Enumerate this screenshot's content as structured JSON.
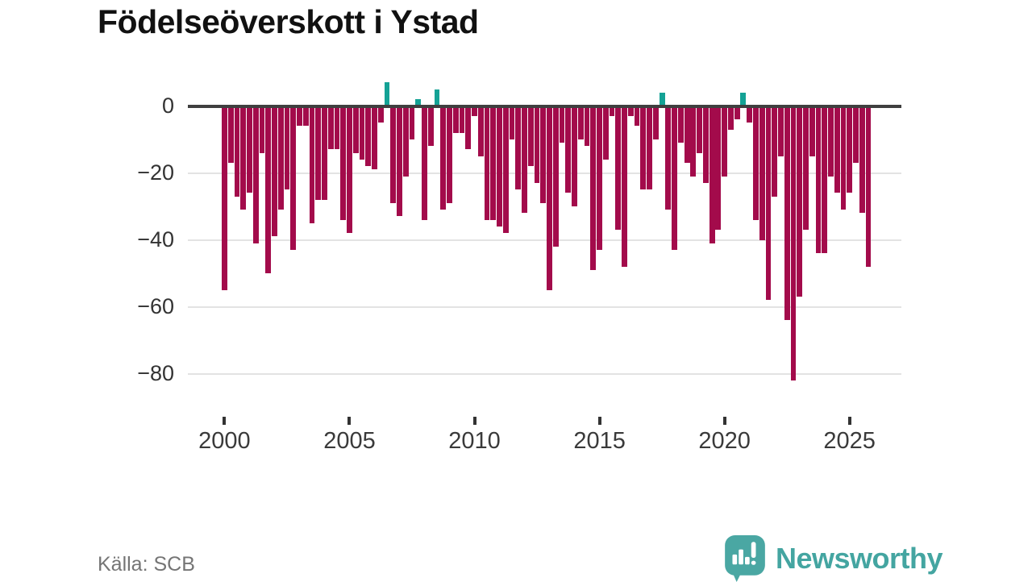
{
  "title": "Födelseöverskott i Ystad",
  "source": "Källa: SCB",
  "brand": {
    "name": "Newsworthy",
    "icon": "newsworthy-speech-bubble-barchart-icon"
  },
  "chart_data": {
    "type": "bar",
    "title": "Födelseöverskott i Ystad",
    "x_unit": "quarter",
    "x": [
      "2000-Q1",
      "2000-Q2",
      "2000-Q3",
      "2000-Q4",
      "2001-Q1",
      "2001-Q2",
      "2001-Q3",
      "2001-Q4",
      "2002-Q1",
      "2002-Q2",
      "2002-Q3",
      "2002-Q4",
      "2003-Q1",
      "2003-Q2",
      "2003-Q3",
      "2003-Q4",
      "2004-Q1",
      "2004-Q2",
      "2004-Q3",
      "2004-Q4",
      "2005-Q1",
      "2005-Q2",
      "2005-Q3",
      "2005-Q4",
      "2006-Q1",
      "2006-Q2",
      "2006-Q3",
      "2006-Q4",
      "2007-Q1",
      "2007-Q2",
      "2007-Q3",
      "2007-Q4",
      "2008-Q1",
      "2008-Q2",
      "2008-Q3",
      "2008-Q4",
      "2009-Q1",
      "2009-Q2",
      "2009-Q3",
      "2009-Q4",
      "2010-Q1",
      "2010-Q2",
      "2010-Q3",
      "2010-Q4",
      "2011-Q1",
      "2011-Q2",
      "2011-Q3",
      "2011-Q4",
      "2012-Q1",
      "2012-Q2",
      "2012-Q3",
      "2012-Q4",
      "2013-Q1",
      "2013-Q2",
      "2013-Q3",
      "2013-Q4",
      "2014-Q1",
      "2014-Q2",
      "2014-Q3",
      "2014-Q4",
      "2015-Q1",
      "2015-Q2",
      "2015-Q3",
      "2015-Q4",
      "2016-Q1",
      "2016-Q2",
      "2016-Q3",
      "2016-Q4",
      "2017-Q1",
      "2017-Q2",
      "2017-Q3",
      "2017-Q4",
      "2018-Q1",
      "2018-Q2",
      "2018-Q3",
      "2018-Q4",
      "2019-Q1",
      "2019-Q2",
      "2019-Q3",
      "2019-Q4",
      "2020-Q1",
      "2020-Q2",
      "2020-Q3",
      "2020-Q4",
      "2021-Q1",
      "2021-Q2",
      "2021-Q3",
      "2021-Q4",
      "2022-Q1",
      "2022-Q2",
      "2022-Q3",
      "2022-Q4",
      "2023-Q1",
      "2023-Q2",
      "2023-Q3",
      "2023-Q4",
      "2024-Q1",
      "2024-Q2",
      "2024-Q3",
      "2024-Q4",
      "2025-Q1",
      "2025-Q2",
      "2025-Q3",
      "2025-Q4"
    ],
    "values": [
      -55,
      -17,
      -27,
      -31,
      -26,
      -41,
      -14,
      -50,
      -39,
      -31,
      -25,
      -43,
      -6,
      -6,
      -35,
      -28,
      -28,
      -13,
      -13,
      -34,
      -38,
      -14,
      -16,
      -18,
      -19,
      -5,
      7,
      -29,
      -33,
      -21,
      -10,
      2,
      -34,
      -12,
      5,
      -31,
      -29,
      -8,
      -8,
      -13,
      -3,
      -15,
      -34,
      -34,
      -36,
      -38,
      -10,
      -25,
      -32,
      -18,
      -23,
      -29,
      -55,
      -42,
      -11,
      -26,
      -30,
      -10,
      -12,
      -49,
      -43,
      -16,
      -3,
      -37,
      -48,
      -3,
      -6,
      -25,
      -25,
      -10,
      4,
      -31,
      -43,
      -11,
      -17,
      -21,
      -14,
      -23,
      -41,
      -37,
      -21,
      -7,
      -4,
      4,
      -5,
      -34,
      -40,
      -58,
      -27,
      -15,
      -64,
      -82,
      -57,
      -37,
      -15,
      -44,
      -44,
      -21,
      -26,
      -31,
      -26,
      -17,
      -32,
      -48
    ],
    "x_tick_labels": [
      "2000",
      "2005",
      "2010",
      "2015",
      "2020",
      "2025"
    ],
    "y_tick_labels": [
      "0",
      "−20",
      "−40",
      "−60",
      "−80"
    ],
    "y_tick_values": [
      0,
      -20,
      -40,
      -60,
      -80
    ],
    "ylim": [
      -88,
      10
    ],
    "grid": "horizontal",
    "legend": "none",
    "colors": {
      "negative": "#a30b4b",
      "positive": "#14a295",
      "axis": "#3f3f3f",
      "gridline": "#e3e3e3"
    }
  }
}
